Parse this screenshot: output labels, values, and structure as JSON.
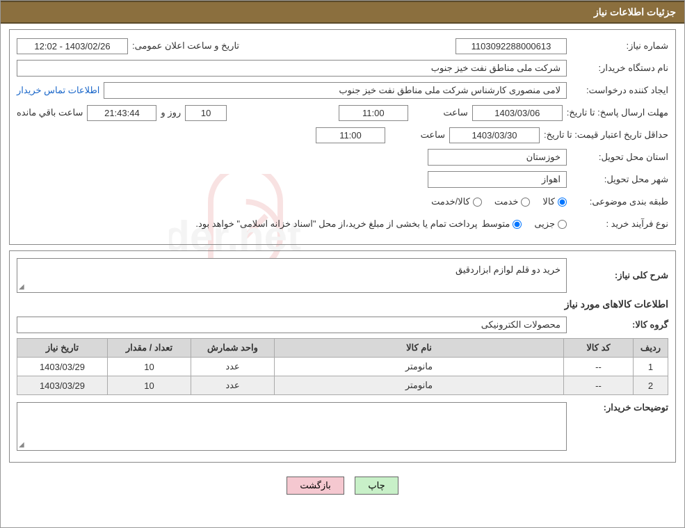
{
  "header": {
    "title": "جزئیات اطلاعات نیاز"
  },
  "info": {
    "need_number_label": "شماره نیاز:",
    "need_number": "1103092288000613",
    "announce_label": "تاریخ و ساعت اعلان عمومی:",
    "announce_value": "1403/02/26 - 12:02",
    "buyer_org_label": "نام دستگاه خریدار:",
    "buyer_org": "شرکت ملی مناطق نفت خیز جنوب",
    "requester_label": "ایجاد کننده درخواست:",
    "requester": "لامی منصوری کارشناس شرکت ملی مناطق نفت خیز جنوب",
    "contact_link": "اطلاعات تماس خریدار",
    "deadline_label": "مهلت ارسال پاسخ:",
    "to_date_label": "تا تاریخ:",
    "deadline_date": "1403/03/06",
    "time_label": "ساعت",
    "deadline_time": "11:00",
    "days_value": "10",
    "days_and": "روز و",
    "countdown": "21:43:44",
    "remaining": "ساعت باقي مانده",
    "validity_label": "حداقل تاریخ اعتبار قیمت:",
    "validity_date": "1403/03/30",
    "validity_time": "11:00",
    "province_label": "استان محل تحویل:",
    "province": "خوزستان",
    "city_label": "شهر محل تحویل:",
    "city": "اهواز",
    "category_label": "طبقه بندی موضوعی:",
    "category": {
      "goods": "کالا",
      "service": "خدمت",
      "goods_service": "کالا/خدمت"
    },
    "process_label": "نوع فرآیند خرید :",
    "process": {
      "partial": "جزیی",
      "medium": "متوسط"
    },
    "process_note": "پرداخت تمام یا بخشی از مبلغ خرید،از محل \"اسناد خزانه اسلامی\" خواهد بود."
  },
  "need": {
    "desc_label": "شرح کلی نیاز:",
    "desc": "خرید دو قلم لوازم ابزاردقیق",
    "items_title": "اطلاعات کالاهای مورد نیاز",
    "group_label": "گروه کالا:",
    "group": "محصولات الکترونیکی",
    "columns": {
      "row": "ردیف",
      "code": "کد کالا",
      "name": "نام کالا",
      "unit": "واحد شمارش",
      "qty": "تعداد / مقدار",
      "date": "تاریخ نیاز"
    },
    "rows": [
      {
        "row": "1",
        "code": "--",
        "name": "مانومتر",
        "unit": "عدد",
        "qty": "10",
        "date": "1403/03/29"
      },
      {
        "row": "2",
        "code": "--",
        "name": "مانومتر",
        "unit": "عدد",
        "qty": "10",
        "date": "1403/03/29"
      }
    ],
    "notes_label": "توضیحات خریدار:"
  },
  "buttons": {
    "print": "چاپ",
    "back": "بازگشت"
  },
  "colors": {
    "header_bg": "#8b6f3e",
    "header_border": "#5a4a2a",
    "border": "#888888",
    "th_bg": "#d8d8d8",
    "row_alt": "#eeeeee",
    "link": "#1966c9",
    "btn_print": "#c8f0c8",
    "btn_back": "#f5c8d0",
    "logo_color": "#c81e1e"
  }
}
